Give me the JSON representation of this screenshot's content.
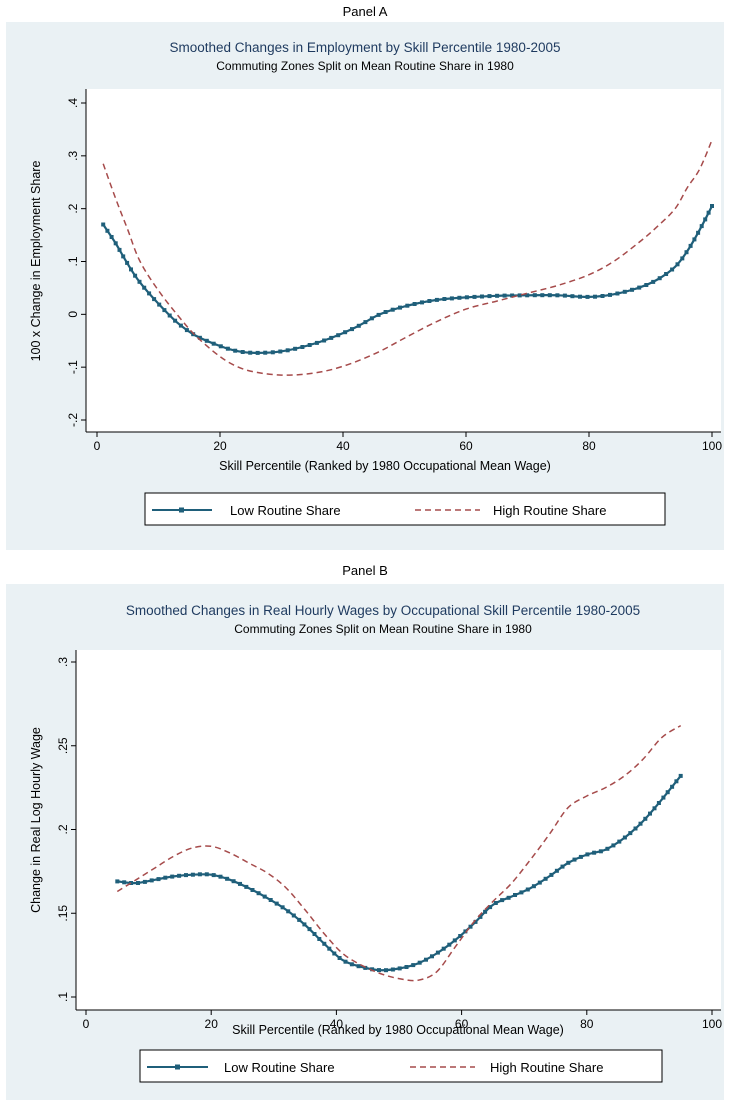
{
  "colors": {
    "outer_bg": "#eaf1f4",
    "plot_bg": "#ffffff",
    "low_series": "#1f5f7a",
    "high_series": "#a64b4b",
    "title_color": "#1e3a5f"
  },
  "chart_data": [
    {
      "type": "line",
      "panel_label": "Panel A",
      "title": "Smoothed Changes in Employment by Skill Percentile 1980-2005",
      "subtitle": "Commuting Zones Split on Mean Routine Share in 1980",
      "xlabel": "Skill Percentile (Ranked by 1980 Occupational Mean Wage)",
      "ylabel": "100 x Change in Employment Share",
      "xlim": [
        0,
        100
      ],
      "ylim": [
        -0.2,
        0.4
      ],
      "xticks": [
        0,
        20,
        40,
        60,
        80,
        100
      ],
      "xtick_labels": [
        "0",
        "20",
        "40",
        "60",
        "80",
        "100"
      ],
      "yticks": [
        -0.2,
        -0.1,
        0,
        0.1,
        0.2,
        0.3,
        0.4
      ],
      "ytick_labels": [
        "-.2",
        "-.1",
        "0",
        ".1",
        ".2",
        ".3",
        ".4"
      ],
      "grid": false,
      "legend_position": "bottom",
      "series": [
        {
          "name": "Low Routine Share",
          "style": "solid-square-markers",
          "x": [
            1,
            3,
            5,
            7,
            10,
            13,
            16,
            20,
            23,
            26,
            30,
            34,
            38,
            42,
            46,
            50,
            55,
            60,
            65,
            70,
            75,
            80,
            84,
            88,
            91,
            94,
            96,
            98,
            100
          ],
          "y": [
            0.17,
            0.135,
            0.095,
            0.06,
            0.02,
            -0.015,
            -0.04,
            -0.06,
            -0.07,
            -0.073,
            -0.07,
            -0.06,
            -0.045,
            -0.025,
            0.0,
            0.015,
            0.027,
            0.032,
            0.035,
            0.036,
            0.036,
            0.033,
            0.038,
            0.05,
            0.065,
            0.09,
            0.12,
            0.16,
            0.205
          ]
        },
        {
          "name": "High Routine Share",
          "style": "dashed",
          "x": [
            1,
            3,
            5,
            7,
            10,
            13,
            16,
            20,
            23,
            26,
            30,
            34,
            38,
            42,
            46,
            50,
            55,
            60,
            65,
            70,
            75,
            80,
            84,
            88,
            91,
            94,
            96,
            98,
            100
          ],
          "y": [
            0.285,
            0.22,
            0.16,
            0.1,
            0.045,
            0.0,
            -0.04,
            -0.08,
            -0.1,
            -0.11,
            -0.115,
            -0.113,
            -0.105,
            -0.09,
            -0.07,
            -0.045,
            -0.015,
            0.01,
            0.025,
            0.04,
            0.055,
            0.075,
            0.1,
            0.135,
            0.165,
            0.2,
            0.24,
            0.275,
            0.33
          ]
        }
      ]
    },
    {
      "type": "line",
      "panel_label": "Panel B",
      "title": "Smoothed Changes in Real Hourly Wages by Occupational Skill Percentile 1980-2005",
      "subtitle": "Commuting Zones Split on Mean Routine Share in 1980",
      "xlabel": "Skill Percentile (Ranked by 1980 Occupational Mean Wage)",
      "ylabel": "Change in Real Log Hourly Wage",
      "xlim": [
        0,
        100
      ],
      "ylim": [
        0.1,
        0.3
      ],
      "xticks": [
        0,
        20,
        40,
        60,
        80,
        100
      ],
      "xtick_labels": [
        "0",
        "20",
        "40",
        "60",
        "80",
        "100"
      ],
      "yticks": [
        0.1,
        0.15,
        0.2,
        0.25,
        0.3
      ],
      "ytick_labels": [
        ".1",
        ".15",
        ".2",
        ".25",
        ".3"
      ],
      "grid": false,
      "legend_position": "bottom",
      "series": [
        {
          "name": "Low Routine Share",
          "style": "solid-square-markers",
          "x": [
            5,
            8,
            11,
            14,
            17,
            20,
            23,
            26,
            29,
            32,
            35,
            38,
            41,
            44,
            47,
            50,
            53,
            56,
            59,
            62,
            65,
            68,
            71,
            74,
            77,
            80,
            83,
            86,
            89,
            92,
            95
          ],
          "y": [
            0.169,
            0.168,
            0.17,
            0.172,
            0.173,
            0.173,
            0.17,
            0.165,
            0.159,
            0.152,
            0.143,
            0.132,
            0.122,
            0.118,
            0.116,
            0.117,
            0.12,
            0.126,
            0.134,
            0.144,
            0.155,
            0.16,
            0.165,
            0.172,
            0.18,
            0.185,
            0.188,
            0.195,
            0.205,
            0.218,
            0.232
          ]
        },
        {
          "name": "High Routine Share",
          "style": "dashed",
          "x": [
            5,
            8,
            11,
            14,
            17,
            20,
            23,
            26,
            29,
            32,
            35,
            38,
            41,
            44,
            47,
            50,
            53,
            56,
            59,
            62,
            65,
            68,
            71,
            74,
            77,
            80,
            83,
            86,
            89,
            92,
            95
          ],
          "y": [
            0.163,
            0.17,
            0.177,
            0.184,
            0.189,
            0.19,
            0.186,
            0.18,
            0.174,
            0.165,
            0.152,
            0.138,
            0.126,
            0.119,
            0.114,
            0.111,
            0.11,
            0.115,
            0.13,
            0.145,
            0.157,
            0.168,
            0.182,
            0.197,
            0.213,
            0.22,
            0.225,
            0.232,
            0.242,
            0.255,
            0.262
          ]
        }
      ]
    }
  ]
}
